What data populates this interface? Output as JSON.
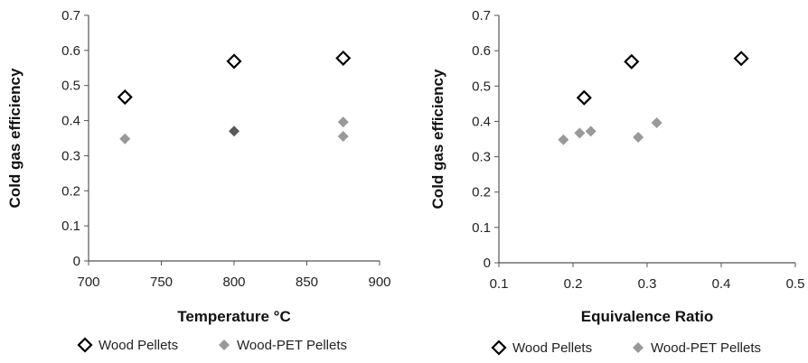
{
  "chart_data": [
    {
      "type": "scatter",
      "title": "",
      "xlabel": "Temperature °C",
      "ylabel": "Cold gas efficiency",
      "xlim": [
        700,
        900
      ],
      "ylim": [
        0,
        0.7
      ],
      "xticks": [
        "700",
        "750",
        "800",
        "850",
        "900"
      ],
      "yticks": [
        "0",
        "0.1",
        "0.2",
        "0.3",
        "0.4",
        "0.5",
        "0.6",
        "0.7"
      ],
      "grid": false,
      "legend_position": "bottom",
      "series": [
        {
          "name": "Wood Pellets",
          "marker": "hollow-diamond",
          "color": "#000000",
          "points": [
            {
              "x": 725,
              "y": 0.467
            },
            {
              "x": 800,
              "y": 0.569
            },
            {
              "x": 875,
              "y": 0.578
            }
          ]
        },
        {
          "name": "Wood-PET Pellets",
          "marker": "filled-diamond",
          "color": "#999999",
          "points": [
            {
              "x": 725,
              "y": 0.348
            },
            {
              "x": 800,
              "y": 0.37,
              "color": "#595959"
            },
            {
              "x": 875,
              "y": 0.396
            },
            {
              "x": 875,
              "y": 0.355
            }
          ]
        }
      ]
    },
    {
      "type": "scatter",
      "title": "",
      "xlabel": "Equivalence Ratio",
      "ylabel": "Cold gas efficiency",
      "xlim": [
        0.1,
        0.5
      ],
      "ylim": [
        0,
        0.7
      ],
      "xticks": [
        "0.1",
        "0.2",
        "0.3",
        "0.4",
        "0.5"
      ],
      "yticks": [
        "0",
        "0.1",
        "0.2",
        "0.3",
        "0.4",
        "0.5",
        "0.6",
        "0.7"
      ],
      "grid": false,
      "legend_position": "bottom",
      "series": [
        {
          "name": "Wood Pellets",
          "marker": "hollow-diamond",
          "color": "#000000",
          "points": [
            {
              "x": 0.215,
              "y": 0.467
            },
            {
              "x": 0.279,
              "y": 0.569
            },
            {
              "x": 0.427,
              "y": 0.578
            }
          ]
        },
        {
          "name": "Wood-PET Pellets",
          "marker": "filled-diamond",
          "color": "#999999",
          "points": [
            {
              "x": 0.187,
              "y": 0.348
            },
            {
              "x": 0.209,
              "y": 0.367
            },
            {
              "x": 0.224,
              "y": 0.372
            },
            {
              "x": 0.288,
              "y": 0.355
            },
            {
              "x": 0.313,
              "y": 0.396
            }
          ]
        }
      ]
    }
  ]
}
